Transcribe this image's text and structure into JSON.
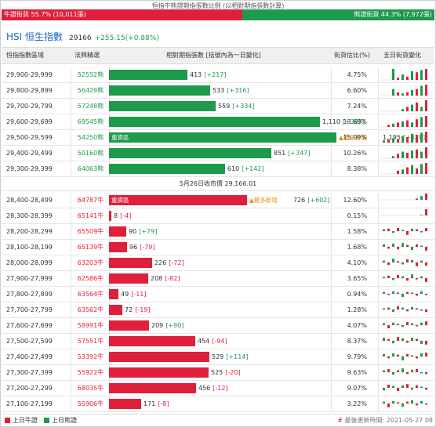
{
  "ratio": {
    "title": "恒指牛熊證期指張數比例 (以相對期指張數計算)",
    "bull_label": "牛證街貨 55.7% (10,011張)",
    "bear_label": "熊證街貨 44.3% (7,972張)",
    "bull_pct": 55.7
  },
  "index": {
    "name": "HSI 恒生指數",
    "value": "29166",
    "change": "+255.15(+0.88%)"
  },
  "headers": {
    "range": "恒指指數區域",
    "code": "法興精選",
    "contracts": "相對期指張數 [括號內為一日變化]",
    "pct": "街貨估比(%)",
    "five_day": "五日街貨變化"
  },
  "close_text": "5月26日收市價 29,166.01",
  "hot_label": "▲最多新增",
  "heavy_label": "重貨區",
  "bear_rows": [
    {
      "range": "29,900-29,999",
      "code": "52552熊",
      "value": 413,
      "value_text": "413",
      "delta": "[+217]",
      "pct": "4.75%",
      "spark": [
        0,
        0,
        1,
        0.2,
        0.5,
        0.3,
        0.8,
        0.7,
        0.9,
        1
      ]
    },
    {
      "range": "29,800-29,899",
      "code": "56429熊",
      "value": 533,
      "value_text": "533",
      "delta": "[+316]",
      "pct": "6.60%",
      "spark": [
        0,
        0,
        0.6,
        0.3,
        0.2,
        0.3,
        0.5,
        0.6,
        0.9,
        1
      ]
    },
    {
      "range": "29,700-29,799",
      "code": "57248熊",
      "value": 559,
      "value_text": "559",
      "delta": "[+334]",
      "pct": "7.24%",
      "spark": [
        0,
        0,
        0,
        0,
        0.2,
        0.4,
        0.6,
        0.8,
        0.4,
        1
      ]
    },
    {
      "range": "29,600-29,699",
      "code": "69545熊",
      "value": 1110,
      "value_text": "1,110",
      "delta": "[+385]",
      "pct": "13.69%",
      "spark": [
        0,
        0.2,
        0.3,
        0.4,
        0.5,
        0.6,
        0.4,
        0.7,
        0.9,
        1
      ]
    },
    {
      "range": "29,500-29,599",
      "code": "54250熊",
      "value": 1195,
      "value_text": "1,195",
      "delta": "[+428]",
      "pct": "15.09%",
      "heavy": true,
      "hot": true,
      "spark": [
        0.2,
        0.3,
        0.4,
        0.3,
        0.6,
        0.5,
        0.8,
        0.7,
        0.9,
        1
      ]
    },
    {
      "range": "29,400-29,499",
      "code": "50160熊",
      "value": 851,
      "value_text": "851",
      "delta": "[+347]",
      "pct": "10.26%",
      "spark": [
        0,
        0,
        0.2,
        0.4,
        0.6,
        0.5,
        0.7,
        0.8,
        0.6,
        1
      ]
    },
    {
      "range": "29,300-29,399",
      "code": "64063熊",
      "value": 610,
      "value_text": "610",
      "delta": "[+142]",
      "pct": "8.38%",
      "spark": [
        0,
        0,
        0,
        0.3,
        0.4,
        0.6,
        0.8,
        0.5,
        0.9,
        1
      ]
    }
  ],
  "bull_rows": [
    {
      "range": "28,400-28,499",
      "code": "64787牛",
      "value": 726,
      "value_text": "726",
      "delta": "[+602]",
      "pct": "12.60%",
      "heavy": true,
      "hot": true,
      "spark": [
        0,
        0,
        0,
        0,
        0,
        0,
        0,
        0.2,
        0.6,
        1
      ]
    },
    {
      "range": "28,300-28,399",
      "code": "65141牛",
      "value": 8,
      "value_text": "8",
      "delta": "[-4]",
      "pct": "0.15%",
      "spark": [
        0,
        0,
        0,
        0,
        0,
        0,
        0,
        0,
        0.1,
        1
      ]
    },
    {
      "range": "28,200-28,299",
      "code": "65509牛",
      "value": 90,
      "value_text": "90",
      "delta": "[+79]",
      "pct": "1.58%",
      "spark": [
        0.3,
        0.4,
        -0.3,
        0.5,
        0.2,
        -0.6,
        0.4,
        0.3,
        -0.2,
        0.5
      ]
    },
    {
      "range": "28,100-28,199",
      "code": "65139牛",
      "value": 96,
      "value_text": "96",
      "delta": "[-79]",
      "pct": "1.68%",
      "spark": [
        0.4,
        -0.3,
        0.5,
        -0.4,
        0.6,
        0.3,
        -0.5,
        0.4,
        0.2,
        -0.6
      ]
    },
    {
      "range": "28,000-28,099",
      "code": "63203牛",
      "value": 226,
      "value_text": "226",
      "delta": "[-72]",
      "pct": "4.10%",
      "spark": [
        0.3,
        -0.4,
        0.6,
        0.2,
        -0.3,
        0.5,
        0.4,
        -0.6,
        0.3,
        -0.5
      ]
    },
    {
      "range": "27,900-27,999",
      "code": "62586牛",
      "value": 208,
      "value_text": "208",
      "delta": "[-82]",
      "pct": "3.65%",
      "spark": [
        0.2,
        0.4,
        -0.3,
        0.5,
        0.3,
        -0.4,
        0.6,
        -0.2,
        0.3,
        -0.6
      ]
    },
    {
      "range": "27,800-27,899",
      "code": "63564牛",
      "value": 49,
      "value_text": "49",
      "delta": "[-11]",
      "pct": "0.94%",
      "spark": [
        0.3,
        -0.2,
        0.4,
        0.2,
        -0.5,
        0.3,
        0.2,
        -0.3,
        0.4,
        -0.2
      ]
    },
    {
      "range": "27,700-27,799",
      "code": "63562牛",
      "value": 72,
      "value_text": "72",
      "delta": "[-19]",
      "pct": "1.28%",
      "spark": [
        0.2,
        0.3,
        -0.4,
        0.5,
        0.3,
        -0.3,
        0.4,
        0.2,
        -0.2,
        -0.4
      ]
    },
    {
      "range": "27,600-27,699",
      "code": "58991牛",
      "value": 209,
      "value_text": "209",
      "delta": "[+90]",
      "pct": "4.07%",
      "spark": [
        0.3,
        -0.5,
        0.4,
        0.2,
        -0.3,
        0.5,
        0.3,
        -0.2,
        0.4,
        0.6
      ]
    },
    {
      "range": "27,500-27,599",
      "code": "57551牛",
      "value": 454,
      "value_text": "454",
      "delta": "[-94]",
      "pct": "8.37%",
      "spark": [
        0.5,
        0.3,
        -0.4,
        0.6,
        0.4,
        -0.3,
        0.5,
        0.3,
        -0.5,
        -0.6
      ]
    },
    {
      "range": "27,400-27,499",
      "code": "53392牛",
      "value": 529,
      "value_text": "529",
      "delta": "[+114]",
      "pct": "9.79%",
      "spark": [
        0.4,
        -0.3,
        0.5,
        0.3,
        -0.6,
        0.4,
        0.2,
        -0.3,
        0.5,
        0.6
      ]
    },
    {
      "range": "27,300-27,399",
      "code": "55922牛",
      "value": 525,
      "value_text": "525",
      "delta": "[-20]",
      "pct": "9.63%",
      "spark": [
        0.3,
        0.5,
        -0.4,
        0.3,
        0.6,
        -0.3,
        0.4,
        0.5,
        -0.2,
        -0.3
      ]
    },
    {
      "range": "27,200-27,299",
      "code": "68035牛",
      "value": 456,
      "value_text": "456",
      "delta": "[-12]",
      "pct": "9.07%",
      "spark": [
        -0.4,
        0.5,
        0.3,
        -0.5,
        0.4,
        0.6,
        -0.3,
        0.4,
        0.2,
        -0.3
      ]
    },
    {
      "range": "27,100-27,199",
      "code": "55906牛",
      "value": 171,
      "value_text": "171",
      "delta": "[-8]",
      "pct": "3.22%",
      "spark": [
        0.3,
        -0.6,
        0.4,
        0.2,
        -0.5,
        0.3,
        0.5,
        -0.3,
        0.4,
        -0.2
      ]
    }
  ],
  "footer": {
    "bull_legend": "上日牛證",
    "bear_legend": "上日熊證",
    "updated_hash": "#",
    "updated": "最後更新時間: 2021-05-27 08"
  },
  "colors": {
    "bull": "#e0203a",
    "bear": "#1e9a4c",
    "hot": "#f08a00"
  }
}
